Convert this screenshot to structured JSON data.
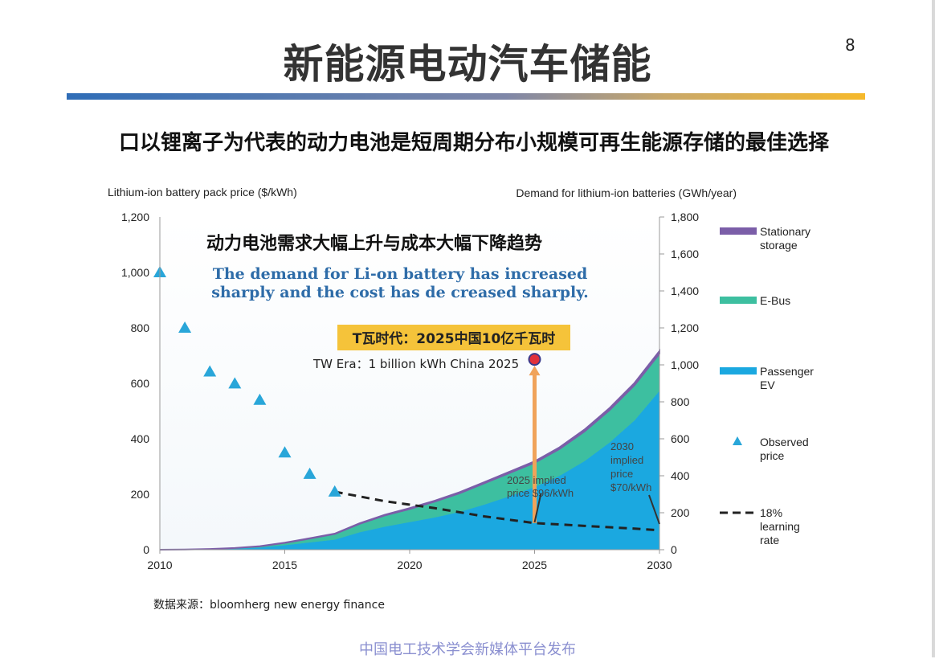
{
  "page": {
    "title": "新能源电动汽车储能",
    "page_number": "8",
    "subtitle": "口以锂离子为代表的动力电池是短周期分布小规模可再生能源存储的最佳选择",
    "source": "数据来源：bloomherg new energy finance",
    "publisher": "中国电工技术学会新媒体平台发布"
  },
  "chart_data": {
    "type": "area",
    "left_axis_label": "Lithium-ion battery pack price ($/kWh)",
    "right_axis_label": "Demand for lithium-ion batteries (GWh/year)",
    "x_ticks": [
      "2010",
      "2015",
      "2020",
      "2025",
      "2030"
    ],
    "xlim": [
      2010,
      2030
    ],
    "y_left_ticks": [
      "0",
      "200",
      "400",
      "600",
      "800",
      "1,000",
      "1,200"
    ],
    "ylim_left": [
      0,
      1200
    ],
    "y_right_ticks": [
      "0",
      "200",
      "400",
      "600",
      "800",
      "1,000",
      "1,200",
      "1,400",
      "1,600",
      "1,800"
    ],
    "ylim_right": [
      0,
      1800
    ],
    "title_cn": "动力电池需求大幅上升与成本大幅下降趋势",
    "title_en_line1": "The demand for Li-on battery has increased",
    "title_en_line2": "sharply and the cost has de creased sharply.",
    "annotation_box": "T瓦时代：2025中国10亿千瓦时",
    "annotation_text": "TW Era：1 billion kWh China 2025",
    "label_2025_line1": "2025 implied",
    "label_2025_line2": "price $96/kWh",
    "label_2030_lines": [
      "2030",
      "implied",
      "price",
      "$70/kWh"
    ],
    "stack_x": [
      2010,
      2011,
      2012,
      2013,
      2014,
      2015,
      2016,
      2017,
      2018,
      2019,
      2020,
      2021,
      2022,
      2023,
      2024,
      2025,
      2026,
      2027,
      2028,
      2029,
      2030
    ],
    "series": [
      {
        "name": "Passenger EV",
        "legend_lines": [
          "Passenger",
          "EV"
        ],
        "color": "#1ba8e0",
        "values": [
          0,
          1,
          3,
          6,
          12,
          25,
          40,
          55,
          95,
          125,
          150,
          175,
          205,
          245,
          290,
          340,
          400,
          480,
          580,
          700,
          860
        ]
      },
      {
        "name": "E-Bus",
        "legend_lines": [
          "E-Bus"
        ],
        "color": "#3dbfa0",
        "values": [
          0,
          0,
          1,
          3,
          6,
          12,
          20,
          30,
          45,
          60,
          70,
          85,
          100,
          115,
          125,
          130,
          145,
          160,
          175,
          190,
          200
        ]
      },
      {
        "name": "Stationary storage",
        "legend_lines": [
          "Stationary",
          "storage"
        ],
        "color": "#7b5ea8",
        "values": [
          0,
          0,
          0,
          0,
          1,
          1,
          2,
          2,
          3,
          4,
          5,
          5,
          6,
          6,
          7,
          8,
          9,
          10,
          11,
          12,
          15
        ]
      }
    ],
    "observed_price": {
      "name": "Observed price",
      "legend_lines": [
        "Observed",
        "price"
      ],
      "color": "#29a6d9",
      "x": [
        2010,
        2011,
        2012,
        2013,
        2014,
        2015,
        2016,
        2017
      ],
      "y": [
        1000,
        800,
        642,
        599,
        540,
        350,
        273,
        209
      ]
    },
    "learning_rate": {
      "name": "18% learning rate",
      "legend_lines": [
        "18%",
        "learning",
        "rate"
      ],
      "x": [
        2017,
        2019,
        2021,
        2023,
        2025,
        2027,
        2029,
        2030
      ],
      "y": [
        209,
        175,
        150,
        120,
        96,
        86,
        76,
        70
      ]
    },
    "marker_2025": {
      "x": 2025,
      "y_right": 1030
    }
  }
}
